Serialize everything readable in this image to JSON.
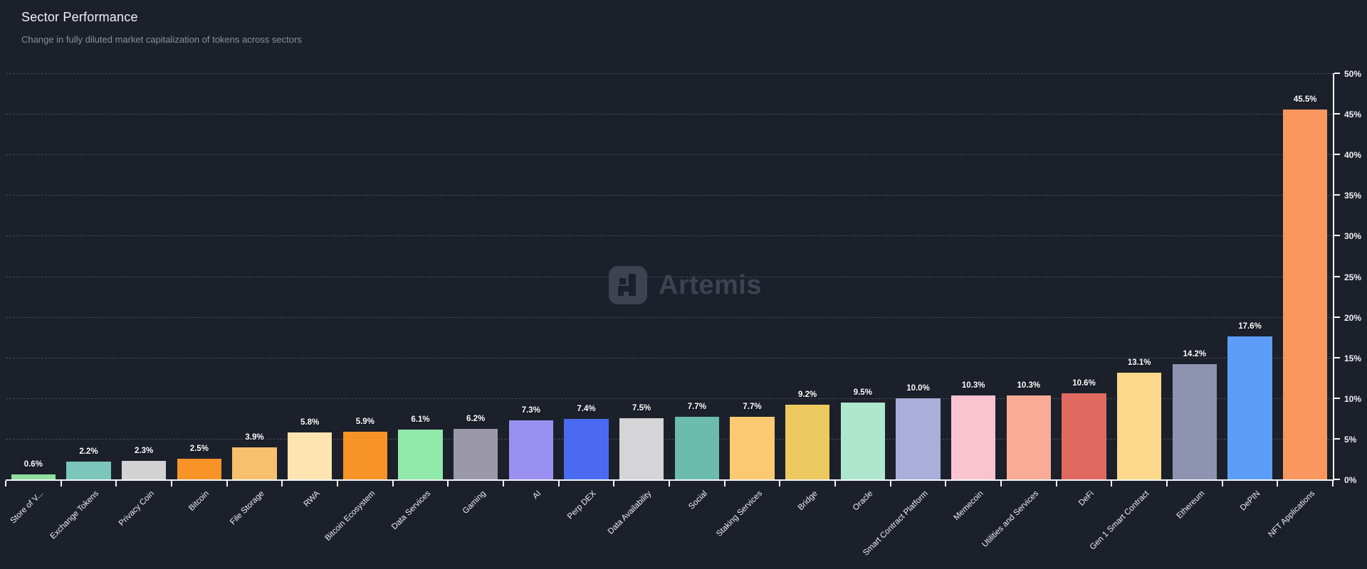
{
  "header": {
    "title": "Sector Performance",
    "subtitle": "Change in fully diluted market capitalization of tokens across sectors"
  },
  "watermark": {
    "brand": "Artemis"
  },
  "chart_data": {
    "type": "bar",
    "title": "Sector Performance",
    "subtitle": "Change in fully diluted market capitalization of tokens across sectors",
    "xlabel": "",
    "ylabel": "",
    "ylim": [
      0,
      50
    ],
    "ytick_step": 5,
    "ytick_suffix": "%",
    "yaxis_position": "right",
    "grid": "dashed-horizontal",
    "legend": "none",
    "categories": [
      "Store of V...",
      "Exchange Tokens",
      "Privacy Coin",
      "Bitcoin",
      "File Storage",
      "RWA",
      "Bitcoin Ecosystem",
      "Data Services",
      "Gaming",
      "AI",
      "Perp DEX",
      "Data Availability",
      "Social",
      "Staking Services",
      "Bridge",
      "Oracle",
      "Smart Contract Platform",
      "Memecoin",
      "Utilities and Services",
      "DeFi",
      "Gen 1 Smart Contract",
      "Ethereum",
      "DePIN",
      "NFT Applications"
    ],
    "values": [
      0.6,
      2.2,
      2.3,
      2.5,
      3.9,
      5.8,
      5.9,
      6.1,
      6.2,
      7.3,
      7.4,
      7.5,
      7.7,
      7.7,
      9.2,
      9.5,
      10.0,
      10.3,
      10.3,
      10.6,
      13.1,
      14.2,
      17.6,
      45.5
    ],
    "value_labels": [
      "0.6%",
      "2.2%",
      "2.3%",
      "2.5%",
      "3.9%",
      "5.8%",
      "5.9%",
      "6.1%",
      "6.2%",
      "7.3%",
      "7.4%",
      "7.5%",
      "7.7%",
      "7.7%",
      "9.2%",
      "9.5%",
      "10.0%",
      "10.3%",
      "10.3%",
      "10.6%",
      "13.1%",
      "14.2%",
      "17.6%",
      "45.5%"
    ],
    "bar_colors": [
      "#8edf9e",
      "#7cc5bb",
      "#d3d3d4",
      "#f79327",
      "#f6c06e",
      "#fde4b1",
      "#f79327",
      "#90e9a9",
      "#9b99a9",
      "#9a90f2",
      "#4a6bf1",
      "#d5d5d7",
      "#6cbcac",
      "#fbc972",
      "#ebc95f",
      "#ade7cd",
      "#a9aeda",
      "#fbc3cf",
      "#faab96",
      "#e06a60",
      "#fdd88a",
      "#8e94b0",
      "#5c9ef7",
      "#f9975f"
    ],
    "colors": {
      "background": "#1c202b",
      "axis": "#f4f5f7",
      "gridline": "rgba(173,178,192,0.28)",
      "value_label": "#ffffff",
      "tick_label": "#edeef2",
      "watermark": "#3e4351"
    }
  }
}
